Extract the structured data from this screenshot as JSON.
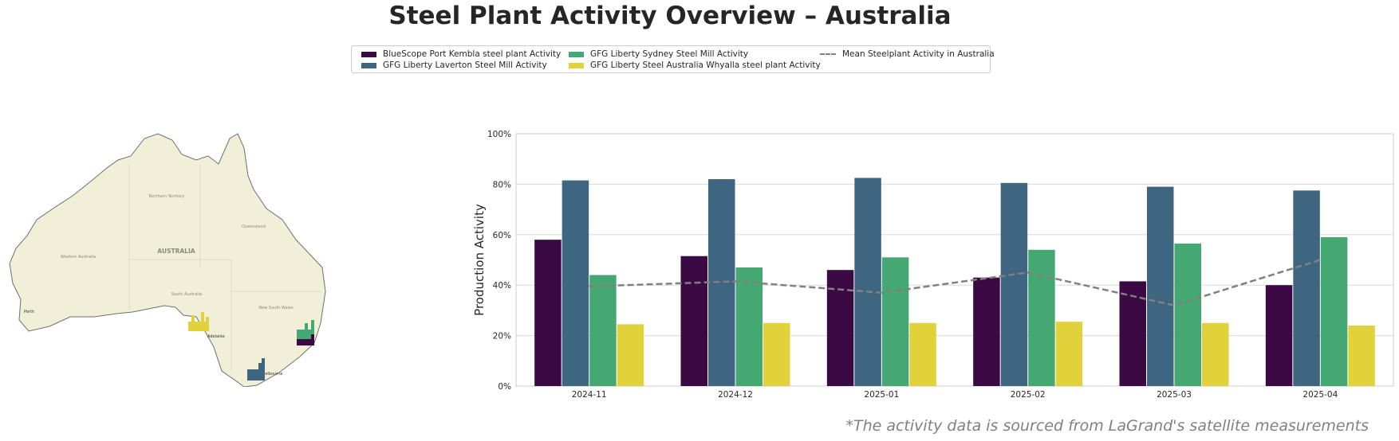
{
  "title": "Steel Plant Activity Overview – Australia",
  "footnote": "*The activity data is sourced from LaGrand's satellite measurements",
  "colors": {
    "bluescope": "#3b0a45",
    "laverton": "#3e6680",
    "sydney": "#45a873",
    "whyalla": "#e1d23c",
    "mean": "#808080"
  },
  "legend": [
    {
      "label": "BlueScope Port Kembla steel plant Activity",
      "color": "#3b0a45",
      "kind": "bar"
    },
    {
      "label": "GFG Liberty Laverton Steel Mill Activity",
      "color": "#3e6680",
      "kind": "bar"
    },
    {
      "label": "GFG Liberty Sydney Steel Mill Activity",
      "color": "#45a873",
      "kind": "bar"
    },
    {
      "label": "GFG Liberty Steel Australia Whyalla steel plant Activity",
      "color": "#e1d23c",
      "kind": "bar"
    },
    {
      "label": "Mean Steelplant Activity in Australia",
      "color": "#808080",
      "kind": "line"
    }
  ],
  "map": {
    "country_label": "AUSTRALIA",
    "place_labels": [
      "Perth",
      "Adelaide",
      "Melbourne"
    ],
    "region_labels": [
      "Western Australia",
      "Northern Territory",
      "Queensland",
      "South Australia",
      "New South Wales"
    ]
  },
  "chart_data": {
    "type": "bar",
    "categories": [
      "2024-11",
      "2024-12",
      "2025-01",
      "2025-02",
      "2025-03",
      "2025-04"
    ],
    "series": [
      {
        "name": "BlueScope Port Kembla steel plant Activity",
        "values": [
          58,
          51.5,
          46,
          43,
          41.5,
          40
        ]
      },
      {
        "name": "GFG Liberty Laverton Steel Mill Activity",
        "values": [
          81.5,
          82,
          82.5,
          80.5,
          79,
          77.5
        ]
      },
      {
        "name": "GFG Liberty Sydney Steel Mill Activity",
        "values": [
          44,
          47,
          51,
          54,
          56.5,
          59
        ]
      },
      {
        "name": "GFG Liberty Steel Australia Whyalla steel plant Activity",
        "values": [
          24.5,
          25,
          25,
          25.5,
          25,
          24
        ]
      }
    ],
    "line_series": {
      "name": "Mean Steelplant Activity in Australia",
      "values": [
        39.5,
        41.5,
        37,
        45,
        32,
        50
      ],
      "style": "dashed"
    },
    "ylabel": "Production Activity",
    "xlabel": "",
    "ylim": [
      0,
      100
    ],
    "yticks": [
      "0%",
      "20%",
      "40%",
      "60%",
      "80%",
      "100%"
    ],
    "grid": "horizontal",
    "legend_position": "top-center"
  }
}
